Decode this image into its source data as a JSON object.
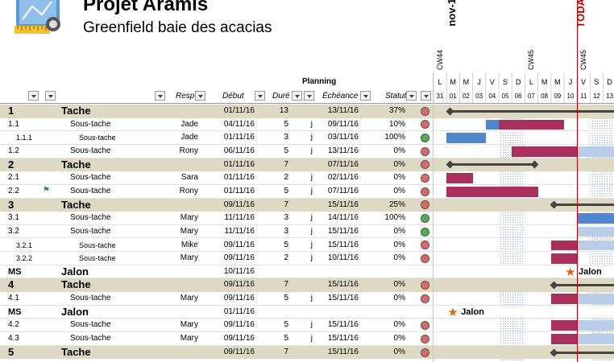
{
  "project": {
    "title": "Projet Aramis",
    "subtitle": "Greenfield baie des acacias"
  },
  "timeline": {
    "month_label": "nov-1",
    "today_label": "TODA",
    "week_labels": [
      {
        "label": "CW44",
        "day_index": 0
      },
      {
        "label": "CW45",
        "day_index": 7
      },
      {
        "label": "CW45",
        "day_index": 11
      }
    ],
    "days": [
      {
        "letter": "L",
        "num": "31"
      },
      {
        "letter": "M",
        "num": "01"
      },
      {
        "letter": "M",
        "num": "02"
      },
      {
        "letter": "J",
        "num": "03"
      },
      {
        "letter": "V",
        "num": "04"
      },
      {
        "letter": "S",
        "num": "05"
      },
      {
        "letter": "D",
        "num": "06"
      },
      {
        "letter": "L",
        "num": "07"
      },
      {
        "letter": "M",
        "num": "08"
      },
      {
        "letter": "M",
        "num": "09"
      },
      {
        "letter": "J",
        "num": "10"
      },
      {
        "letter": "V",
        "num": "11"
      },
      {
        "letter": "S",
        "num": "12"
      },
      {
        "letter": "D",
        "num": "13"
      }
    ],
    "today_day_index": 11,
    "colors": {
      "planned": "#a8305a",
      "done": "#4f86d0",
      "future": "#b9cce8",
      "weekend_dots": "#88aaff",
      "today": "#c00000"
    }
  },
  "headers": {
    "planning": "Planning",
    "resp": "Resp",
    "debut": "Début",
    "duree": "Duré",
    "echeance": "Échéance",
    "statut": "Statut"
  },
  "status_colors": {
    "red": "#e06666",
    "green": "#4caf50"
  },
  "rows": [
    {
      "type": "tache",
      "num": "1",
      "name": "Tache",
      "resp": "",
      "debut": "01/11/16",
      "duree": "13",
      "unit": "",
      "echeance": "13/11/16",
      "pct": "37%",
      "status": "red",
      "gantt": {
        "line": [
          1,
          13
        ]
      }
    },
    {
      "type": "sub",
      "num": "1.1",
      "name": "Sous-tache",
      "resp": "Jade",
      "debut": "04/11/16",
      "duree": "5",
      "unit": "j",
      "echeance": "09/11/16",
      "pct": "10%",
      "status": "red",
      "gantt": {
        "done": [
          4,
          5
        ],
        "planned": [
          5,
          9
        ]
      }
    },
    {
      "type": "sub3",
      "num": "1.1.1",
      "name": "Sous-tache",
      "resp": "Jade",
      "debut": "01/11/16",
      "duree": "3",
      "unit": "j",
      "echeance": "03/11/16",
      "pct": "100%",
      "status": "green",
      "gantt": {
        "done": [
          1,
          3
        ]
      }
    },
    {
      "type": "sub",
      "num": "1.2",
      "name": "Sous-tache",
      "resp": "Rony",
      "debut": "06/11/16",
      "duree": "5",
      "unit": "j",
      "echeance": "13/11/16",
      "pct": "0%",
      "status": "red",
      "gantt": {
        "planned": [
          6,
          10
        ],
        "future": [
          11,
          13
        ]
      }
    },
    {
      "type": "tache",
      "num": "2",
      "name": "Tache",
      "resp": "",
      "debut": "01/11/16",
      "duree": "7",
      "unit": "",
      "echeance": "07/11/16",
      "pct": "0%",
      "status": "red",
      "gantt": {
        "line": [
          1,
          7
        ]
      }
    },
    {
      "type": "sub",
      "num": "2.1",
      "name": "Sous-tache",
      "resp": "Sara",
      "debut": "01/11/16",
      "duree": "2",
      "unit": "j",
      "echeance": "02/11/16",
      "pct": "0%",
      "status": "red",
      "gantt": {
        "planned": [
          1,
          2
        ]
      }
    },
    {
      "type": "sub",
      "num": "2.2",
      "name": "Sous-tache",
      "resp": "Rony",
      "debut": "01/11/16",
      "duree": "5",
      "unit": "j",
      "echeance": "07/11/16",
      "pct": "0%",
      "status": "red",
      "flag": true,
      "gantt": {
        "planned": [
          1,
          7
        ]
      }
    },
    {
      "type": "tache",
      "num": "3",
      "name": "Tache",
      "resp": "",
      "debut": "09/11/16",
      "duree": "7",
      "unit": "",
      "echeance": "15/11/16",
      "pct": "25%",
      "status": "red",
      "gantt": {
        "line": [
          9,
          13
        ]
      }
    },
    {
      "type": "sub",
      "num": "3.1",
      "name": "Sous-tache",
      "resp": "Mary",
      "debut": "11/11/16",
      "duree": "3",
      "unit": "j",
      "echeance": "14/11/16",
      "pct": "100%",
      "status": "green",
      "gantt": {
        "done": [
          11,
          13
        ]
      }
    },
    {
      "type": "sub",
      "num": "3.2",
      "name": "Sous-tache",
      "resp": "Mary",
      "debut": "11/11/16",
      "duree": "3",
      "unit": "j",
      "echeance": "15/11/16",
      "pct": "0%",
      "status": "green",
      "gantt": {
        "future": [
          11,
          13
        ]
      }
    },
    {
      "type": "sub3",
      "num": "3.2.1",
      "name": "Sous-tache",
      "resp": "Mike",
      "debut": "09/11/16",
      "duree": "5",
      "unit": "j",
      "echeance": "15/11/16",
      "pct": "0%",
      "status": "red",
      "gantt": {
        "planned": [
          9,
          10
        ],
        "future": [
          11,
          13
        ]
      }
    },
    {
      "type": "sub3",
      "num": "3.2.2",
      "name": "Sous-tache",
      "resp": "Mary",
      "debut": "09/11/16",
      "duree": "2",
      "unit": "j",
      "echeance": "10/11/16",
      "pct": "0%",
      "status": "red",
      "gantt": {
        "planned": [
          9,
          10
        ]
      }
    },
    {
      "type": "jalon",
      "num": "MS",
      "name": "Jalon",
      "resp": "",
      "debut": "10/11/16",
      "duree": "",
      "unit": "",
      "echeance": "",
      "pct": "",
      "status": "",
      "gantt": {
        "milestone": 10,
        "label": "Jalon"
      }
    },
    {
      "type": "tache",
      "num": "4",
      "name": "Tache",
      "resp": "",
      "debut": "09/11/16",
      "duree": "7",
      "unit": "",
      "echeance": "15/11/16",
      "pct": "0%",
      "status": "red",
      "gantt": {
        "line": [
          9,
          13
        ]
      }
    },
    {
      "type": "sub",
      "num": "4.1",
      "name": "Sous-tache",
      "resp": "Mary",
      "debut": "09/11/16",
      "duree": "5",
      "unit": "j",
      "echeance": "15/11/16",
      "pct": "0%",
      "status": "red",
      "gantt": {
        "planned": [
          9,
          10
        ],
        "future": [
          11,
          13
        ]
      }
    },
    {
      "type": "jalon",
      "num": "MS",
      "name": "Jalon",
      "resp": "",
      "debut": "01/11/16",
      "duree": "",
      "unit": "",
      "echeance": "",
      "pct": "",
      "status": "",
      "gantt": {
        "milestone": 1,
        "label": "Jalon"
      }
    },
    {
      "type": "sub",
      "num": "4.2",
      "name": "Sous-tache",
      "resp": "Mary",
      "debut": "09/11/16",
      "duree": "5",
      "unit": "j",
      "echeance": "15/11/16",
      "pct": "0%",
      "status": "red",
      "gantt": {
        "planned": [
          9,
          10
        ],
        "future": [
          11,
          13
        ]
      }
    },
    {
      "type": "sub",
      "num": "4.3",
      "name": "Sous-tache",
      "resp": "Mary",
      "debut": "09/11/16",
      "duree": "5",
      "unit": "j",
      "echeance": "15/11/16",
      "pct": "0%",
      "status": "red",
      "gantt": {
        "planned": [
          9,
          10
        ],
        "future": [
          11,
          13
        ]
      }
    },
    {
      "type": "tache",
      "num": "5",
      "name": "Tache",
      "resp": "",
      "debut": "09/11/16",
      "duree": "7",
      "unit": "",
      "echeance": "15/11/16",
      "pct": "0%",
      "status": "red",
      "gantt": {
        "line": [
          9,
          13
        ]
      }
    }
  ]
}
